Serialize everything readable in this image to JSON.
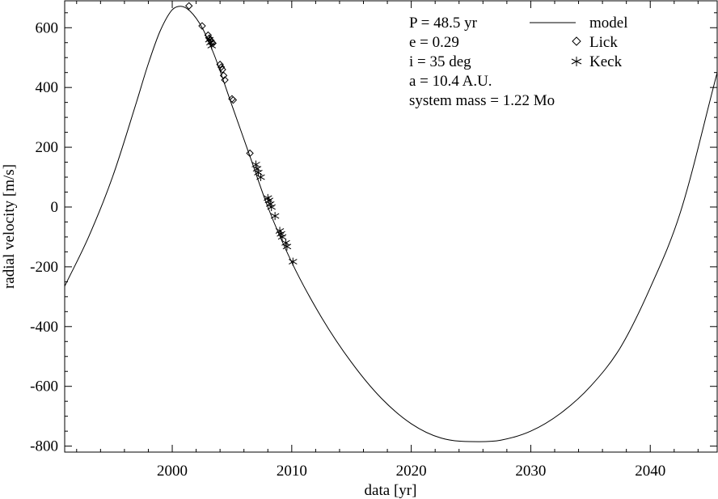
{
  "chart_data": {
    "type": "scatter",
    "title": "",
    "xlabel": "data [yr]",
    "ylabel": "radial velocity [m/s]",
    "xlim": [
      1991,
      2045.6
    ],
    "ylim": [
      -820,
      690
    ],
    "xticks": [
      2000,
      2010,
      2020,
      2030,
      2040
    ],
    "yticks": [
      -800,
      -600,
      -400,
      -200,
      0,
      200,
      400,
      600
    ],
    "xtick_labels": [
      "2000",
      "2010",
      "2020",
      "2030",
      "2040"
    ],
    "ytick_labels": [
      "-800",
      "-600",
      "-400",
      "-200",
      "0",
      "200",
      "400",
      "600"
    ],
    "grid": false,
    "legend_position": "top-right",
    "annotations": [
      "P = 48.5 yr",
      "e = 0.29",
      "i = 35 deg",
      "a = 10.4 A.U.",
      "system mass = 1.22 Mo"
    ],
    "series": [
      {
        "name": "model",
        "kind": "line",
        "color": "#000000",
        "x": [
          1991.0,
          1993.0,
          1995.0,
          1997.0,
          1998.0,
          1999.0,
          2000.0,
          2000.7,
          2001.5,
          2002.5,
          2003.5,
          2005.0,
          2006.5,
          2008.0,
          2010.0,
          2012.5,
          2015.0,
          2017.5,
          2020.0,
          2022.5,
          2025.7,
          2027.5,
          2030.0,
          2032.5,
          2035.0,
          2037.5,
          2040.0,
          2042.5,
          2045.6
        ],
        "y": [
          -265,
          -100,
          100,
          350,
          480,
          590,
          660,
          672,
          655,
          600,
          510,
          340,
          170,
          0,
          -185,
          -370,
          -520,
          -640,
          -725,
          -773,
          -785,
          -780,
          -750,
          -690,
          -600,
          -470,
          -270,
          -20,
          450
        ]
      },
      {
        "name": "Lick",
        "kind": "marker",
        "marker": "diamond",
        "color": "#000000",
        "x": [
          2001.4,
          2002.5,
          2003.0,
          2003.1,
          2003.2,
          2003.3,
          2003.4,
          2004.0,
          2004.1,
          2004.2,
          2004.3,
          2004.4,
          2005.0,
          2005.1,
          2006.5
        ],
        "y": [
          673,
          606,
          575,
          565,
          558,
          552,
          548,
          477,
          468,
          460,
          440,
          425,
          362,
          358,
          180
        ]
      },
      {
        "name": "Keck",
        "kind": "marker",
        "marker": "asterisk",
        "color": "#000000",
        "x": [
          2003.1,
          2003.2,
          2003.3,
          2007.0,
          2007.1,
          2007.2,
          2007.4,
          2008.0,
          2008.1,
          2008.2,
          2008.3,
          2008.6,
          2009.0,
          2009.1,
          2009.2,
          2009.5,
          2009.6,
          2010.1
        ],
        "y": [
          560,
          550,
          540,
          142,
          128,
          115,
          100,
          30,
          22,
          10,
          0,
          -30,
          -80,
          -90,
          -100,
          -120,
          -132,
          -183
        ]
      }
    ]
  }
}
